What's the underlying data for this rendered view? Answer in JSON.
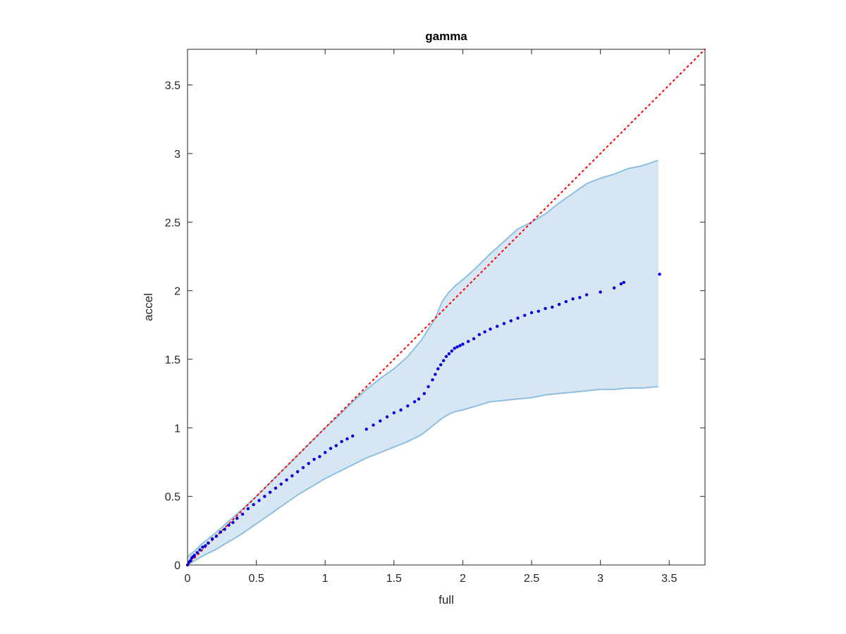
{
  "chart_data": {
    "type": "scatter",
    "title": "gamma",
    "xlabel": "full",
    "ylabel": "accel",
    "xlim": [
      0,
      3.76
    ],
    "ylim": [
      0,
      3.76
    ],
    "x_ticks": [
      0,
      0.5,
      1,
      1.5,
      2,
      2.5,
      3,
      3.5
    ],
    "x_tick_labels": [
      "0",
      "0.5",
      "1",
      "1.5",
      "2",
      "2.5",
      "3",
      "3.5"
    ],
    "y_ticks": [
      0,
      0.5,
      1,
      1.5,
      2,
      2.5,
      3,
      3.5
    ],
    "y_tick_labels": [
      "0",
      "0.5",
      "1",
      "1.5",
      "2",
      "2.5",
      "3",
      "3.5"
    ],
    "grid": false,
    "colors": {
      "points": "#0000dd",
      "reference_line": "#ff0000",
      "band_fill": "#d6e6f3",
      "band_edge": "#8ebfe0",
      "axis": "#262626"
    },
    "series": [
      {
        "kind": "points",
        "x": [
          0.0,
          0.01,
          0.02,
          0.03,
          0.04,
          0.05,
          0.07,
          0.09,
          0.11,
          0.13,
          0.15,
          0.18,
          0.21,
          0.24,
          0.27,
          0.3,
          0.33,
          0.36,
          0.4,
          0.44,
          0.48,
          0.52,
          0.56,
          0.6,
          0.64,
          0.68,
          0.72,
          0.76,
          0.8,
          0.84,
          0.88,
          0.92,
          0.96,
          1.0,
          1.04,
          1.08,
          1.12,
          1.16,
          1.2,
          1.3,
          1.35,
          1.4,
          1.45,
          1.5,
          1.55,
          1.6,
          1.65,
          1.68,
          1.72,
          1.75,
          1.78,
          1.8,
          1.82,
          1.84,
          1.86,
          1.88,
          1.9,
          1.92,
          1.94,
          1.96,
          1.98,
          2.0,
          2.04,
          2.08,
          2.12,
          2.16,
          2.2,
          2.25,
          2.3,
          2.35,
          2.4,
          2.45,
          2.5,
          2.55,
          2.6,
          2.65,
          2.7,
          2.75,
          2.8,
          2.85,
          2.9,
          3.0,
          3.1,
          3.15,
          3.17,
          3.43
        ],
        "y": [
          0.0,
          0.02,
          0.03,
          0.05,
          0.06,
          0.07,
          0.09,
          0.11,
          0.13,
          0.14,
          0.16,
          0.19,
          0.21,
          0.24,
          0.26,
          0.29,
          0.31,
          0.34,
          0.37,
          0.41,
          0.44,
          0.47,
          0.5,
          0.53,
          0.56,
          0.59,
          0.62,
          0.65,
          0.68,
          0.71,
          0.74,
          0.77,
          0.79,
          0.82,
          0.85,
          0.87,
          0.9,
          0.92,
          0.94,
          0.99,
          1.02,
          1.05,
          1.08,
          1.11,
          1.13,
          1.16,
          1.19,
          1.21,
          1.25,
          1.3,
          1.35,
          1.39,
          1.43,
          1.46,
          1.49,
          1.52,
          1.54,
          1.56,
          1.58,
          1.59,
          1.6,
          1.61,
          1.63,
          1.65,
          1.68,
          1.7,
          1.72,
          1.74,
          1.76,
          1.78,
          1.8,
          1.82,
          1.84,
          1.85,
          1.87,
          1.88,
          1.9,
          1.92,
          1.94,
          1.95,
          1.97,
          1.99,
          2.02,
          2.05,
          2.06,
          2.12
        ]
      },
      {
        "kind": "reference-line",
        "x": [
          0,
          3.76
        ],
        "y": [
          0,
          3.76
        ]
      },
      {
        "kind": "band",
        "x": [
          0.0,
          0.05,
          0.1,
          0.2,
          0.3,
          0.4,
          0.5,
          0.6,
          0.7,
          0.8,
          0.9,
          1.0,
          1.1,
          1.2,
          1.3,
          1.4,
          1.5,
          1.6,
          1.7,
          1.8,
          1.85,
          1.9,
          1.95,
          2.0,
          2.1,
          2.2,
          2.3,
          2.4,
          2.5,
          2.6,
          2.7,
          2.8,
          2.9,
          3.0,
          3.1,
          3.2,
          3.3,
          3.42
        ],
        "upper": [
          0.06,
          0.1,
          0.15,
          0.23,
          0.32,
          0.41,
          0.5,
          0.6,
          0.7,
          0.8,
          0.9,
          1.0,
          1.09,
          1.19,
          1.28,
          1.36,
          1.43,
          1.52,
          1.64,
          1.8,
          1.92,
          1.99,
          2.04,
          2.08,
          2.17,
          2.27,
          2.36,
          2.45,
          2.5,
          2.56,
          2.64,
          2.71,
          2.78,
          2.82,
          2.85,
          2.89,
          2.91,
          2.95
        ],
        "lower": [
          0.0,
          0.03,
          0.06,
          0.11,
          0.17,
          0.23,
          0.3,
          0.37,
          0.44,
          0.51,
          0.57,
          0.63,
          0.68,
          0.73,
          0.78,
          0.82,
          0.86,
          0.9,
          0.95,
          1.03,
          1.07,
          1.1,
          1.12,
          1.13,
          1.16,
          1.19,
          1.2,
          1.21,
          1.22,
          1.24,
          1.25,
          1.26,
          1.27,
          1.28,
          1.28,
          1.29,
          1.29,
          1.3
        ]
      }
    ]
  }
}
